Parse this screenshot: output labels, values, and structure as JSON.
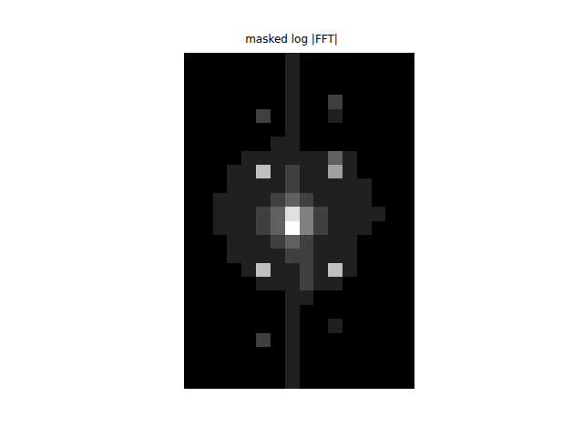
{
  "chart_data": {
    "type": "heatmap",
    "title": "masked log |FFT|",
    "color": "gray",
    "tick_labels": false,
    "cells": [
      [
        1,
        1,
        1,
        1,
        1,
        1,
        1,
        2,
        1,
        1,
        1,
        1,
        1,
        1,
        1,
        1
      ],
      [
        1,
        1,
        1,
        1,
        1,
        1,
        1,
        2,
        1,
        1,
        1,
        1,
        1,
        1,
        1,
        1
      ],
      [
        1,
        1,
        1,
        1,
        1,
        1,
        1,
        2,
        1,
        1,
        1,
        1,
        1,
        1,
        1,
        1
      ],
      [
        1,
        1,
        1,
        1,
        1,
        1,
        1,
        2,
        1,
        1,
        3,
        1,
        1,
        1,
        1,
        1
      ],
      [
        1,
        1,
        1,
        1,
        1,
        3,
        1,
        2,
        1,
        1,
        2,
        1,
        1,
        1,
        1,
        1
      ],
      [
        1,
        1,
        1,
        1,
        1,
        1,
        1,
        2,
        1,
        1,
        1,
        1,
        1,
        1,
        1,
        1
      ],
      [
        1,
        1,
        1,
        1,
        1,
        1,
        2,
        2,
        1,
        1,
        1,
        1,
        1,
        1,
        1,
        1
      ],
      [
        1,
        1,
        1,
        1,
        2,
        2,
        2,
        2,
        2,
        2,
        4,
        2,
        1,
        1,
        1,
        1
      ],
      [
        1,
        1,
        1,
        2,
        2,
        7,
        2,
        3,
        2,
        2,
        6,
        2,
        1,
        1,
        1,
        1
      ],
      [
        1,
        1,
        1,
        2,
        2,
        2,
        2,
        3,
        2,
        2,
        2,
        2,
        2,
        1,
        1,
        1
      ],
      [
        1,
        1,
        2,
        2,
        2,
        2,
        3,
        4,
        3,
        2,
        2,
        2,
        2,
        1,
        1,
        1
      ],
      [
        1,
        1,
        2,
        2,
        2,
        3,
        4,
        8,
        5,
        3,
        2,
        2,
        2,
        2,
        1,
        1
      ],
      [
        1,
        1,
        2,
        2,
        2,
        3,
        4,
        9,
        5,
        3,
        2,
        2,
        2,
        1,
        1,
        1
      ],
      [
        1,
        1,
        1,
        2,
        2,
        2,
        3,
        4,
        3,
        2,
        2,
        2,
        1,
        1,
        1,
        1
      ],
      [
        1,
        1,
        1,
        2,
        2,
        2,
        2,
        3,
        3,
        2,
        2,
        2,
        1,
        1,
        1,
        1
      ],
      [
        1,
        1,
        1,
        1,
        2,
        7,
        2,
        2,
        3,
        2,
        7,
        2,
        1,
        1,
        1,
        1
      ],
      [
        1,
        1,
        1,
        1,
        1,
        2,
        2,
        2,
        3,
        2,
        2,
        1,
        1,
        1,
        1,
        1
      ],
      [
        1,
        1,
        1,
        1,
        1,
        1,
        1,
        2,
        2,
        1,
        1,
        1,
        1,
        1,
        1,
        1
      ],
      [
        1,
        1,
        1,
        1,
        1,
        1,
        1,
        2,
        1,
        1,
        1,
        1,
        1,
        1,
        1,
        1
      ],
      [
        1,
        1,
        1,
        1,
        1,
        1,
        1,
        2,
        1,
        1,
        2,
        1,
        1,
        1,
        1,
        1
      ],
      [
        1,
        1,
        1,
        1,
        1,
        3,
        1,
        2,
        1,
        1,
        1,
        1,
        1,
        1,
        1,
        1
      ],
      [
        1,
        1,
        1,
        1,
        1,
        1,
        1,
        2,
        1,
        1,
        1,
        1,
        1,
        1,
        1,
        1
      ],
      [
        1,
        1,
        1,
        1,
        1,
        1,
        1,
        2,
        1,
        1,
        1,
        1,
        1,
        1,
        1,
        1
      ],
      [
        1,
        1,
        1,
        1,
        1,
        1,
        1,
        2,
        1,
        1,
        1,
        1,
        1,
        1,
        1,
        1
      ]
    ]
  }
}
